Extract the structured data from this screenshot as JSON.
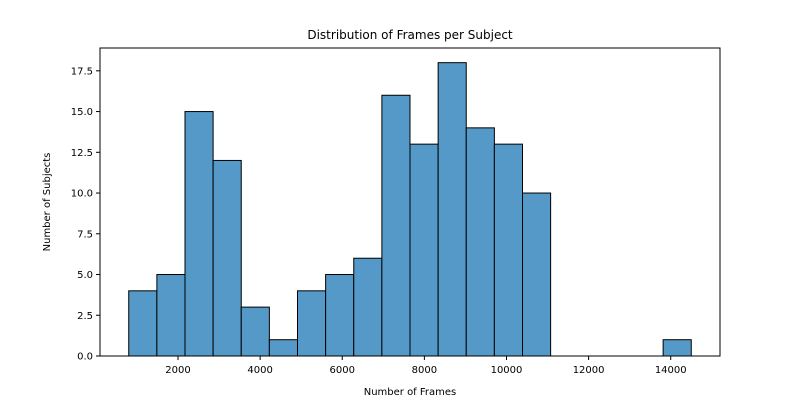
{
  "chart_data": {
    "type": "bar",
    "title": "Distribution of Frames per Subject",
    "xlabel": "Number of Frames",
    "ylabel": "Number of Subjects",
    "xlim": [
      100,
      15200
    ],
    "ylim": [
      0,
      18.9
    ],
    "x_ticks": [
      2000,
      4000,
      6000,
      8000,
      10000,
      12000,
      14000
    ],
    "x_tick_labels": [
      "2000",
      "4000",
      "6000",
      "8000",
      "10000",
      "12000",
      "14000"
    ],
    "y_ticks": [
      0,
      2.5,
      5,
      7.5,
      10,
      12.5,
      15,
      17.5
    ],
    "y_tick_labels": [
      "0.0",
      "2.5",
      "5.0",
      "7.5",
      "10.0",
      "12.5",
      "15.0",
      "17.5"
    ],
    "bin_width": 685,
    "bins": [
      {
        "start": 800,
        "count": 4
      },
      {
        "start": 1485,
        "count": 5
      },
      {
        "start": 2170,
        "count": 15
      },
      {
        "start": 2855,
        "count": 12
      },
      {
        "start": 3540,
        "count": 3
      },
      {
        "start": 4225,
        "count": 1
      },
      {
        "start": 4910,
        "count": 4
      },
      {
        "start": 5595,
        "count": 5
      },
      {
        "start": 6280,
        "count": 6
      },
      {
        "start": 6965,
        "count": 16
      },
      {
        "start": 7650,
        "count": 13
      },
      {
        "start": 8335,
        "count": 18
      },
      {
        "start": 9020,
        "count": 14
      },
      {
        "start": 9705,
        "count": 13
      },
      {
        "start": 10390,
        "count": 10
      },
      {
        "start": 11075,
        "count": 0
      },
      {
        "start": 11760,
        "count": 0
      },
      {
        "start": 12445,
        "count": 0
      },
      {
        "start": 13130,
        "count": 0
      },
      {
        "start": 13815,
        "count": 1
      }
    ],
    "grid": false,
    "bar_color": "#5499c7",
    "edge_color": "#000000"
  }
}
